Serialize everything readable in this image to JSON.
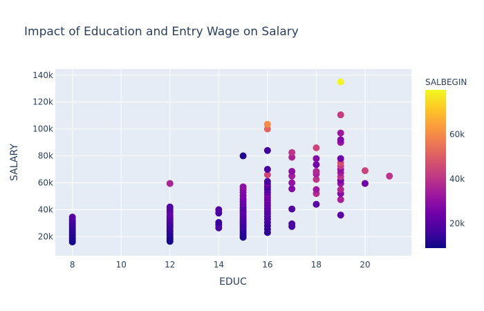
{
  "chart_data": {
    "type": "scatter",
    "title": "Impact of Education and Entry Wage on Salary",
    "xlabel": "EDUC",
    "ylabel": "SALARY",
    "xlim": [
      7.3,
      21.9
    ],
    "ylim": [
      5800,
      144500
    ],
    "x_ticks": [
      8,
      10,
      12,
      14,
      16,
      18,
      20
    ],
    "x_tick_labels": [
      "8",
      "10",
      "12",
      "14",
      "16",
      "18",
      "20"
    ],
    "y_ticks": [
      20000,
      40000,
      60000,
      80000,
      100000,
      120000,
      140000
    ],
    "y_tick_labels": [
      "20k",
      "40k",
      "60k",
      "80k",
      "100k",
      "120k",
      "140k"
    ],
    "colorbar": {
      "title": "SALBEGIN",
      "range": [
        9000,
        80000
      ],
      "ticks": [
        20000,
        40000,
        60000
      ],
      "tick_labels": [
        "20k",
        "40k",
        "60k"
      ],
      "colorscale": [
        "#0d0887",
        "#46039f",
        "#7201a8",
        "#9c179e",
        "#bd3786",
        "#d8576b",
        "#ed7953",
        "#fb9f3a",
        "#fdca26",
        "#f0f921"
      ]
    },
    "grid": true,
    "background": "#e5ecf6",
    "points": [
      {
        "x": 8,
        "y": 16000,
        "c": 10000
      },
      {
        "x": 8,
        "y": 17500,
        "c": 10500
      },
      {
        "x": 8,
        "y": 19000,
        "c": 11000
      },
      {
        "x": 8,
        "y": 20500,
        "c": 11500
      },
      {
        "x": 8,
        "y": 22000,
        "c": 12000
      },
      {
        "x": 8,
        "y": 23500,
        "c": 12500
      },
      {
        "x": 8,
        "y": 25000,
        "c": 13000
      },
      {
        "x": 8,
        "y": 26500,
        "c": 13500
      },
      {
        "x": 8,
        "y": 28000,
        "c": 14000
      },
      {
        "x": 8,
        "y": 29500,
        "c": 15000
      },
      {
        "x": 8,
        "y": 31000,
        "c": 16000
      },
      {
        "x": 8,
        "y": 32500,
        "c": 17000
      },
      {
        "x": 8,
        "y": 34500,
        "c": 19000
      },
      {
        "x": 12,
        "y": 16500,
        "c": 10000
      },
      {
        "x": 12,
        "y": 18000,
        "c": 10500
      },
      {
        "x": 12,
        "y": 19500,
        "c": 11000
      },
      {
        "x": 12,
        "y": 21000,
        "c": 12000
      },
      {
        "x": 12,
        "y": 22500,
        "c": 12500
      },
      {
        "x": 12,
        "y": 24000,
        "c": 13000
      },
      {
        "x": 12,
        "y": 25500,
        "c": 14000
      },
      {
        "x": 12,
        "y": 27000,
        "c": 14500
      },
      {
        "x": 12,
        "y": 28500,
        "c": 15000
      },
      {
        "x": 12,
        "y": 30000,
        "c": 16000
      },
      {
        "x": 12,
        "y": 31500,
        "c": 17000
      },
      {
        "x": 12,
        "y": 33000,
        "c": 18000
      },
      {
        "x": 12,
        "y": 34500,
        "c": 19000
      },
      {
        "x": 12,
        "y": 36000,
        "c": 21000
      },
      {
        "x": 12,
        "y": 38000,
        "c": 22000
      },
      {
        "x": 12,
        "y": 40000,
        "c": 20000
      },
      {
        "x": 12,
        "y": 42000,
        "c": 19000
      },
      {
        "x": 12,
        "y": 59500,
        "c": 36000
      },
      {
        "x": 14,
        "y": 26500,
        "c": 17000
      },
      {
        "x": 14,
        "y": 28500,
        "c": 18000
      },
      {
        "x": 14,
        "y": 30500,
        "c": 15000
      },
      {
        "x": 14,
        "y": 37500,
        "c": 17000
      },
      {
        "x": 14,
        "y": 40000,
        "c": 19000
      },
      {
        "x": 15,
        "y": 19500,
        "c": 11000
      },
      {
        "x": 15,
        "y": 21000,
        "c": 12000
      },
      {
        "x": 15,
        "y": 22500,
        "c": 12500
      },
      {
        "x": 15,
        "y": 24000,
        "c": 13000
      },
      {
        "x": 15,
        "y": 25500,
        "c": 14000
      },
      {
        "x": 15,
        "y": 27000,
        "c": 15000
      },
      {
        "x": 15,
        "y": 28500,
        "c": 15500
      },
      {
        "x": 15,
        "y": 30000,
        "c": 16000
      },
      {
        "x": 15,
        "y": 31500,
        "c": 17000
      },
      {
        "x": 15,
        "y": 33000,
        "c": 18000
      },
      {
        "x": 15,
        "y": 34500,
        "c": 18500
      },
      {
        "x": 15,
        "y": 36000,
        "c": 19000
      },
      {
        "x": 15,
        "y": 37500,
        "c": 20000
      },
      {
        "x": 15,
        "y": 39000,
        "c": 21000
      },
      {
        "x": 15,
        "y": 40500,
        "c": 20000
      },
      {
        "x": 15,
        "y": 42000,
        "c": 19000
      },
      {
        "x": 15,
        "y": 44000,
        "c": 22000
      },
      {
        "x": 15,
        "y": 46000,
        "c": 23000
      },
      {
        "x": 15,
        "y": 48000,
        "c": 24000
      },
      {
        "x": 15,
        "y": 50500,
        "c": 26000
      },
      {
        "x": 15,
        "y": 53000,
        "c": 27000
      },
      {
        "x": 15,
        "y": 55000,
        "c": 28000
      },
      {
        "x": 15,
        "y": 57000,
        "c": 30000
      },
      {
        "x": 15,
        "y": 80000,
        "c": 12000
      },
      {
        "x": 16,
        "y": 23000,
        "c": 13000
      },
      {
        "x": 16,
        "y": 25500,
        "c": 14000
      },
      {
        "x": 16,
        "y": 28000,
        "c": 15000
      },
      {
        "x": 16,
        "y": 30500,
        "c": 16000
      },
      {
        "x": 16,
        "y": 33000,
        "c": 17000
      },
      {
        "x": 16,
        "y": 35000,
        "c": 18000
      },
      {
        "x": 16,
        "y": 37000,
        "c": 19000
      },
      {
        "x": 16,
        "y": 39000,
        "c": 20000
      },
      {
        "x": 16,
        "y": 41000,
        "c": 21000
      },
      {
        "x": 16,
        "y": 43000,
        "c": 22000
      },
      {
        "x": 16,
        "y": 45000,
        "c": 23000
      },
      {
        "x": 16,
        "y": 47000,
        "c": 24000
      },
      {
        "x": 16,
        "y": 49000,
        "c": 25000
      },
      {
        "x": 16,
        "y": 51000,
        "c": 26000
      },
      {
        "x": 16,
        "y": 53000,
        "c": 22000
      },
      {
        "x": 16,
        "y": 55000,
        "c": 20000
      },
      {
        "x": 16,
        "y": 57000,
        "c": 18000
      },
      {
        "x": 16,
        "y": 59000,
        "c": 24000
      },
      {
        "x": 16,
        "y": 61000,
        "c": 17000
      },
      {
        "x": 16,
        "y": 66000,
        "c": 45000
      },
      {
        "x": 16,
        "y": 70000,
        "c": 17000
      },
      {
        "x": 16,
        "y": 84000,
        "c": 16000
      },
      {
        "x": 16,
        "y": 100000,
        "c": 52000
      },
      {
        "x": 16,
        "y": 103500,
        "c": 60000
      },
      {
        "x": 17,
        "y": 27500,
        "c": 17000
      },
      {
        "x": 17,
        "y": 29500,
        "c": 18000
      },
      {
        "x": 17,
        "y": 40500,
        "c": 19000
      },
      {
        "x": 17,
        "y": 55500,
        "c": 28000
      },
      {
        "x": 17,
        "y": 60000,
        "c": 31000
      },
      {
        "x": 17,
        "y": 65000,
        "c": 34000
      },
      {
        "x": 17,
        "y": 68500,
        "c": 30000
      },
      {
        "x": 17,
        "y": 79000,
        "c": 36000
      },
      {
        "x": 17,
        "y": 82500,
        "c": 40000
      },
      {
        "x": 18,
        "y": 44000,
        "c": 20000
      },
      {
        "x": 18,
        "y": 52000,
        "c": 38000
      },
      {
        "x": 18,
        "y": 55000,
        "c": 33000
      },
      {
        "x": 18,
        "y": 62500,
        "c": 40000
      },
      {
        "x": 18,
        "y": 66500,
        "c": 35000
      },
      {
        "x": 18,
        "y": 68500,
        "c": 37000
      },
      {
        "x": 18,
        "y": 73500,
        "c": 25000
      },
      {
        "x": 18,
        "y": 78000,
        "c": 28000
      },
      {
        "x": 18,
        "y": 86000,
        "c": 44000
      },
      {
        "x": 19,
        "y": 36000,
        "c": 21000
      },
      {
        "x": 19,
        "y": 47500,
        "c": 35000
      },
      {
        "x": 19,
        "y": 52000,
        "c": 28000
      },
      {
        "x": 19,
        "y": 55000,
        "c": 37000
      },
      {
        "x": 19,
        "y": 59500,
        "c": 32000
      },
      {
        "x": 19,
        "y": 62000,
        "c": 26000
      },
      {
        "x": 19,
        "y": 64500,
        "c": 40000
      },
      {
        "x": 19,
        "y": 67500,
        "c": 34000
      },
      {
        "x": 19,
        "y": 70000,
        "c": 30000
      },
      {
        "x": 19,
        "y": 72500,
        "c": 42000
      },
      {
        "x": 19,
        "y": 75000,
        "c": 47000
      },
      {
        "x": 19,
        "y": 78000,
        "c": 24000
      },
      {
        "x": 19,
        "y": 90000,
        "c": 32000
      },
      {
        "x": 19,
        "y": 92000,
        "c": 28000
      },
      {
        "x": 19,
        "y": 97000,
        "c": 33000
      },
      {
        "x": 19,
        "y": 110500,
        "c": 42000
      },
      {
        "x": 19,
        "y": 135000,
        "c": 79000
      },
      {
        "x": 20,
        "y": 59500,
        "c": 24000
      },
      {
        "x": 20,
        "y": 69000,
        "c": 44000
      },
      {
        "x": 21,
        "y": 65000,
        "c": 40000
      }
    ]
  }
}
